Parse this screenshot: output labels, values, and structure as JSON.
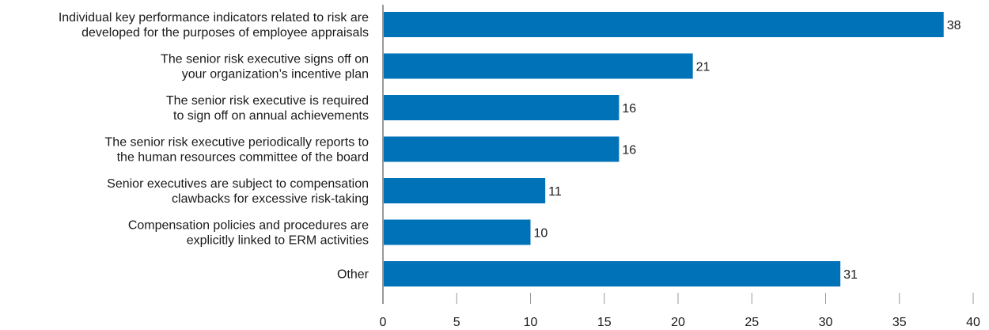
{
  "chart_data": {
    "type": "bar",
    "orientation": "horizontal",
    "title": "",
    "xlabel": "",
    "ylabel": "",
    "categories": [
      [
        "Individual key performance indicators related to risk are",
        "developed for the purposes of employee appraisals"
      ],
      [
        "The senior risk executive signs off on",
        "your organization’s incentive plan"
      ],
      [
        "The senior risk executive is required",
        "to sign off on annual achievements"
      ],
      [
        "The senior risk executive periodically reports to",
        "the human resources committee of the board"
      ],
      [
        "Senior executives are subject to compensation",
        "clawbacks for excessive risk-taking"
      ],
      [
        "Compensation policies and procedures are",
        "explicitly linked to ERM activities"
      ],
      [
        "Other"
      ]
    ],
    "values": [
      38,
      21,
      16,
      16,
      11,
      10,
      31
    ],
    "xlim": [
      0,
      40
    ],
    "xticks": [
      0,
      5,
      10,
      15,
      20,
      25,
      30,
      35,
      40
    ],
    "grid": false,
    "legend": "none",
    "bar_color": "#0072b8",
    "axis_color": "#999999",
    "text_color": "#1a1a1a"
  }
}
